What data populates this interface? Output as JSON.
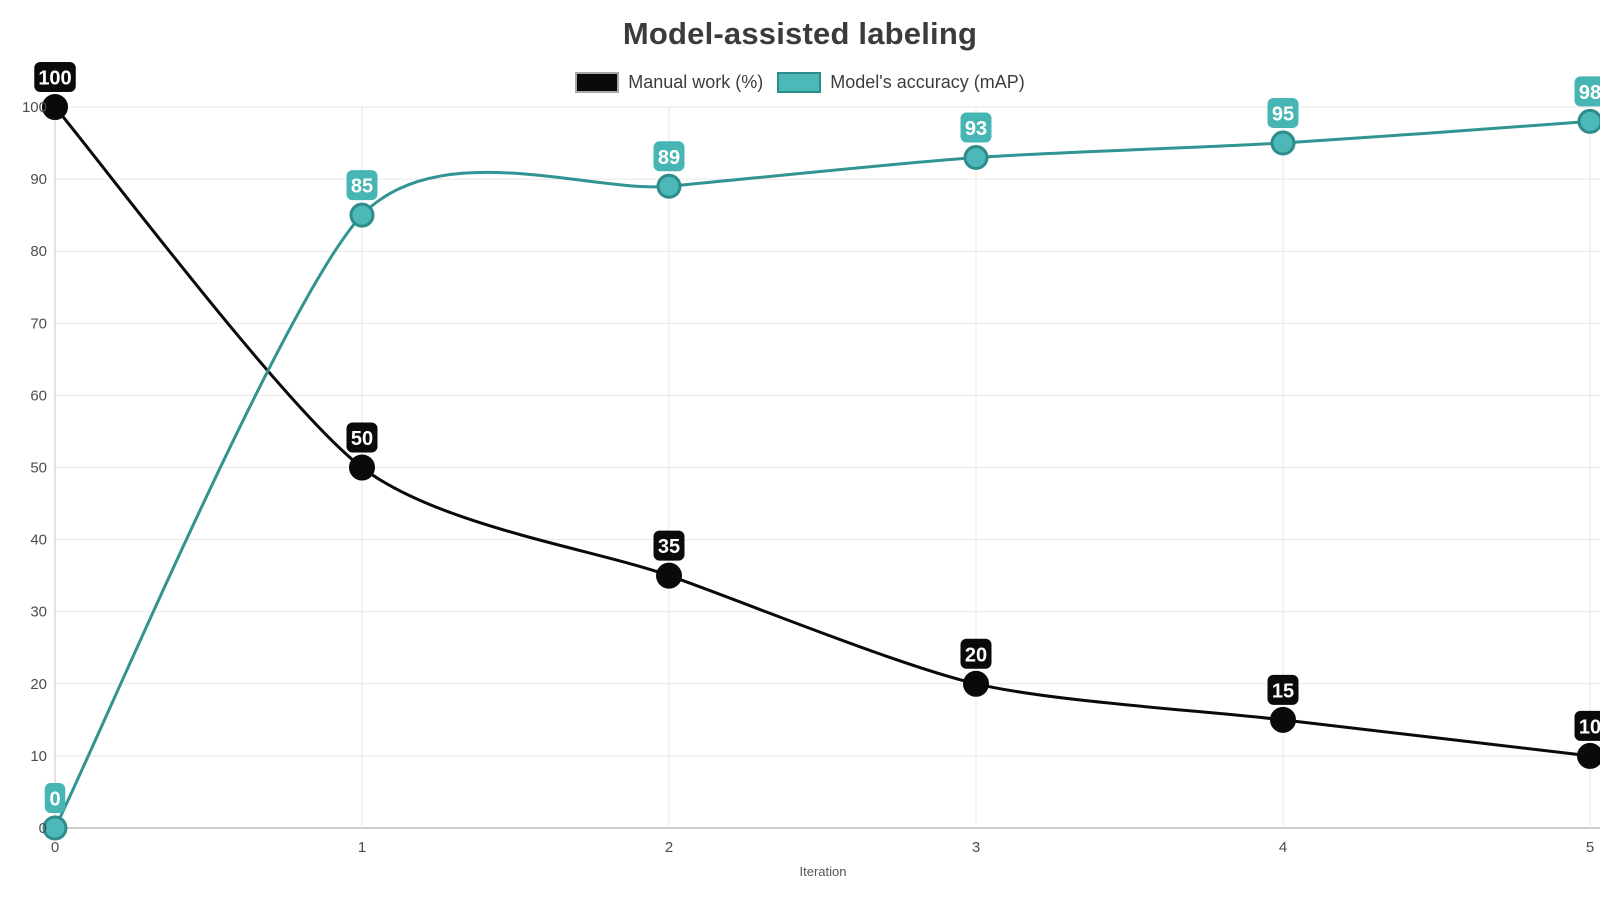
{
  "title": "Model-assisted labeling",
  "legend": [
    {
      "label": "Manual work (%)",
      "swatch_fill": "#0a0a0a",
      "swatch_border": "#a8a8a8"
    },
    {
      "label": "Model's accuracy (mAP)",
      "swatch_fill": "#4cb8b7",
      "swatch_border": "#2e8c8b"
    }
  ],
  "colors": {
    "manual_line": "#0a0a0a",
    "accuracy_line": "#319392",
    "accuracy_marker_fill": "#4cb8b7",
    "accuracy_marker_stroke": "#2e8c8b",
    "grid": "#e7e7e7",
    "axis_line": "#999999",
    "zero_column_line": "#c9c9c9",
    "tick_text": "#4d4d4d",
    "title_text": "#3b3b3b"
  },
  "chart_data": {
    "type": "line",
    "title": "Model-assisted labeling",
    "xlabel": "Iteration",
    "ylabel": "",
    "x": [
      0,
      1,
      2,
      3,
      4,
      5
    ],
    "x_ticks": [
      "0",
      "1",
      "2",
      "3",
      "4",
      "5"
    ],
    "y_ticks": [
      "0",
      "10",
      "20",
      "30",
      "40",
      "50",
      "60",
      "70",
      "80",
      "90",
      "100"
    ],
    "xlim": [
      0,
      5
    ],
    "ylim": [
      0,
      100
    ],
    "ytick_step": 10,
    "grid": true,
    "legend_position": "top",
    "curve": "smooth",
    "series": [
      {
        "name": "Manual work (%)",
        "values": [
          100,
          50,
          35,
          20,
          15,
          10
        ],
        "line_color": "#0a0a0a",
        "marker_fill": "#0a0a0a",
        "marker_stroke": "#0a0a0a",
        "label_bg": "#0a0a0a",
        "label_text_color": "#ffffff",
        "point_labels": [
          "100",
          "50",
          "35",
          "20",
          "15",
          "10"
        ]
      },
      {
        "name": "Model's accuracy (mAP)",
        "values": [
          0,
          85,
          89,
          93,
          95,
          98
        ],
        "line_color": "#319392",
        "marker_fill": "#4cb8b7",
        "marker_stroke": "#2e8c8b",
        "label_bg": "#47b5b4",
        "label_text_color": "#ffffff",
        "point_labels": [
          "0",
          "85",
          "89",
          "93",
          "95",
          "98"
        ]
      }
    ]
  }
}
